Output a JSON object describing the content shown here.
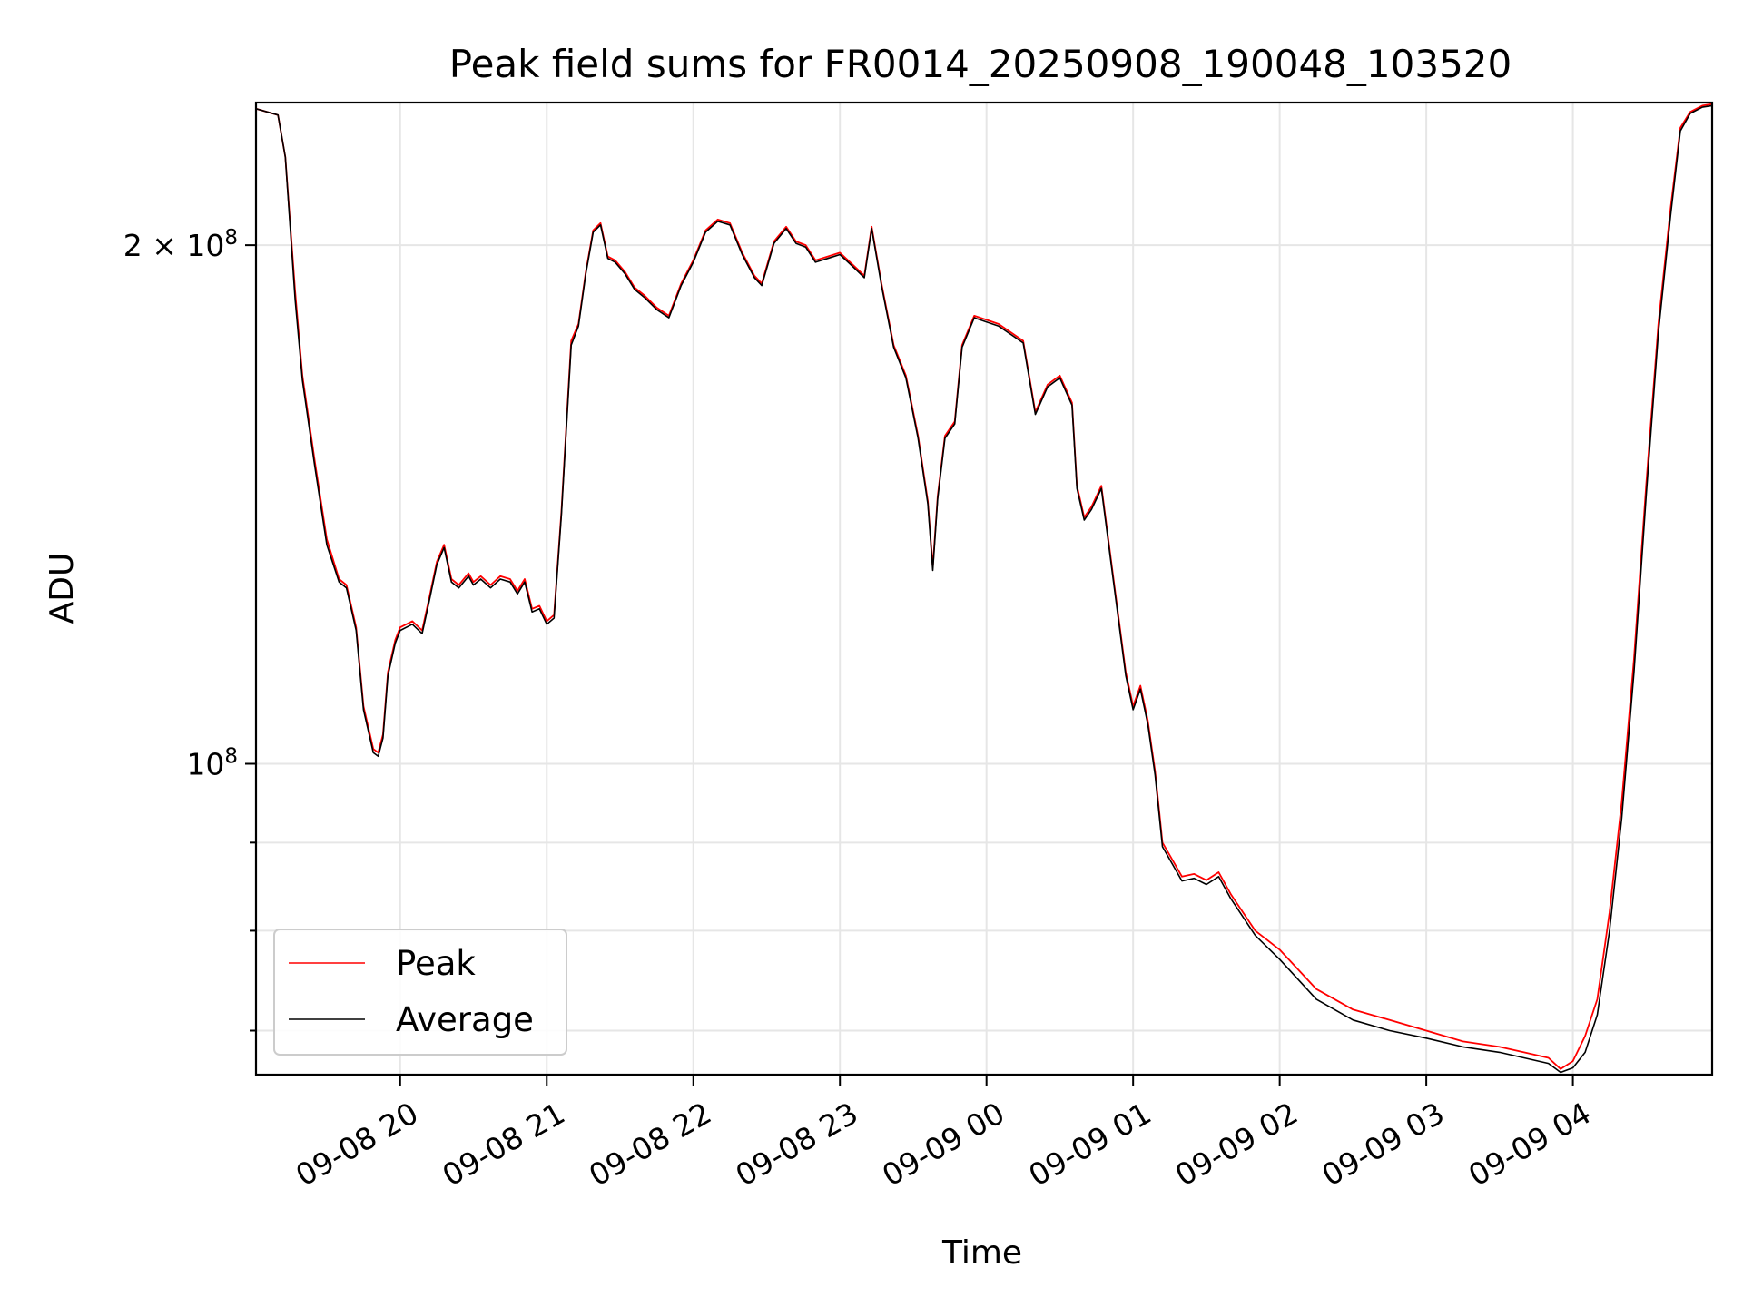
{
  "chart_data": {
    "type": "line",
    "title": "Peak field sums for FR0014_20250908_190048_103520",
    "xlabel": "Time",
    "ylabel": "ADU",
    "y_scale": "log",
    "ylim": [
      66000000,
      242000000
    ],
    "xlim": [
      "2025-09-08 19:01",
      "2025-09-09 04:57"
    ],
    "x_ticks": [
      {
        "value": "2025-09-08 20:00",
        "label": "09-08 20"
      },
      {
        "value": "2025-09-08 21:00",
        "label": "09-08 21"
      },
      {
        "value": "2025-09-08 22:00",
        "label": "09-08 22"
      },
      {
        "value": "2025-09-08 23:00",
        "label": "09-08 23"
      },
      {
        "value": "2025-09-09 00:00",
        "label": "09-09 00"
      },
      {
        "value": "2025-09-09 01:00",
        "label": "09-09 01"
      },
      {
        "value": "2025-09-09 02:00",
        "label": "09-09 02"
      },
      {
        "value": "2025-09-09 03:00",
        "label": "09-09 03"
      },
      {
        "value": "2025-09-09 04:00",
        "label": "09-09 04"
      }
    ],
    "y_major_ticks": [
      {
        "value": 100000000,
        "base": "10",
        "exp": "8",
        "label_html": ""
      },
      {
        "value": 200000000,
        "coef": "2 × ",
        "base": "10",
        "exp": "8"
      }
    ],
    "y_minor_ticks": [
      70000000,
      80000000,
      90000000
    ],
    "grid": true,
    "legend": {
      "placement": "lower-left",
      "entries": [
        "Peak",
        "Average"
      ]
    },
    "series": [
      {
        "name": "Peak",
        "color": "#ff0000",
        "x": [
          "2025-09-08 19:01",
          "2025-09-08 19:10",
          "2025-09-08 19:13",
          "2025-09-08 19:17",
          "2025-09-08 19:20",
          "2025-09-08 19:25",
          "2025-09-08 19:30",
          "2025-09-08 19:35",
          "2025-09-08 19:38",
          "2025-09-08 19:42",
          "2025-09-08 19:45",
          "2025-09-08 19:49",
          "2025-09-08 19:51",
          "2025-09-08 19:53",
          "2025-09-08 19:55",
          "2025-09-08 19:58",
          "2025-09-08 20:00",
          "2025-09-08 20:05",
          "2025-09-08 20:09",
          "2025-09-08 20:12",
          "2025-09-08 20:15",
          "2025-09-08 20:18",
          "2025-09-08 20:21",
          "2025-09-08 20:24",
          "2025-09-08 20:28",
          "2025-09-08 20:30",
          "2025-09-08 20:33",
          "2025-09-08 20:37",
          "2025-09-08 20:41",
          "2025-09-08 20:45",
          "2025-09-08 20:48",
          "2025-09-08 20:51",
          "2025-09-08 20:54",
          "2025-09-08 20:57",
          "2025-09-08 21:00",
          "2025-09-08 21:03",
          "2025-09-08 21:06",
          "2025-09-08 21:10",
          "2025-09-08 21:13",
          "2025-09-08 21:16",
          "2025-09-08 21:19",
          "2025-09-08 21:22",
          "2025-09-08 21:25",
          "2025-09-08 21:28",
          "2025-09-08 21:32",
          "2025-09-08 21:36",
          "2025-09-08 21:40",
          "2025-09-08 21:45",
          "2025-09-08 21:50",
          "2025-09-08 21:55",
          "2025-09-08 22:00",
          "2025-09-08 22:05",
          "2025-09-08 22:10",
          "2025-09-08 22:15",
          "2025-09-08 22:20",
          "2025-09-08 22:25",
          "2025-09-08 22:28",
          "2025-09-08 22:33",
          "2025-09-08 22:38",
          "2025-09-08 22:42",
          "2025-09-08 22:46",
          "2025-09-08 22:50",
          "2025-09-08 22:55",
          "2025-09-08 23:00",
          "2025-09-08 23:05",
          "2025-09-08 23:10",
          "2025-09-08 23:13",
          "2025-09-08 23:17",
          "2025-09-08 23:22",
          "2025-09-08 23:27",
          "2025-09-08 23:32",
          "2025-09-08 23:36",
          "2025-09-08 23:38",
          "2025-09-08 23:40",
          "2025-09-08 23:43",
          "2025-09-08 23:47",
          "2025-09-08 23:50",
          "2025-09-08 23:55",
          "2025-09-09 00:00",
          "2025-09-09 00:05",
          "2025-09-09 00:10",
          "2025-09-09 00:15",
          "2025-09-09 00:20",
          "2025-09-09 00:25",
          "2025-09-09 00:30",
          "2025-09-09 00:35",
          "2025-09-09 00:37",
          "2025-09-09 00:40",
          "2025-09-09 00:43",
          "2025-09-09 00:47",
          "2025-09-09 00:52",
          "2025-09-09 00:57",
          "2025-09-09 01:00",
          "2025-09-09 01:03",
          "2025-09-09 01:06",
          "2025-09-09 01:09",
          "2025-09-09 01:12",
          "2025-09-09 01:16",
          "2025-09-09 01:20",
          "2025-09-09 01:25",
          "2025-09-09 01:30",
          "2025-09-09 01:35",
          "2025-09-09 01:40",
          "2025-09-09 01:50",
          "2025-09-09 02:00",
          "2025-09-09 02:15",
          "2025-09-09 02:30",
          "2025-09-09 02:45",
          "2025-09-09 03:00",
          "2025-09-09 03:15",
          "2025-09-09 03:30",
          "2025-09-09 03:40",
          "2025-09-09 03:50",
          "2025-09-09 03:55",
          "2025-09-09 04:00",
          "2025-09-09 04:05",
          "2025-09-09 04:10",
          "2025-09-09 04:15",
          "2025-09-09 04:20",
          "2025-09-09 04:25",
          "2025-09-09 04:30",
          "2025-09-09 04:35",
          "2025-09-09 04:40",
          "2025-09-09 04:44",
          "2025-09-09 04:48",
          "2025-09-09 04:53",
          "2025-09-09 04:57"
        ],
        "y": [
          240000000,
          238000000,
          225000000,
          188000000,
          168000000,
          150000000,
          135000000,
          128000000,
          127000000,
          120000000,
          108000000,
          102000000,
          101500000,
          104000000,
          113000000,
          118000000,
          120000000,
          121000000,
          119500000,
          125000000,
          131000000,
          134000000,
          128000000,
          127000000,
          129000000,
          127500000,
          128500000,
          127000000,
          128500000,
          128000000,
          126000000,
          128000000,
          123000000,
          123500000,
          121000000,
          122000000,
          140000000,
          176000000,
          180000000,
          193000000,
          204000000,
          206000000,
          197000000,
          196000000,
          193000000,
          189000000,
          187000000,
          184000000,
          182000000,
          190000000,
          196000000,
          204000000,
          207000000,
          206000000,
          198000000,
          192000000,
          190000000,
          201000000,
          205000000,
          201000000,
          200000000,
          196000000,
          197000000,
          198000000,
          195000000,
          192000000,
          205000000,
          190000000,
          175000000,
          168000000,
          155000000,
          142000000,
          130000000,
          143000000,
          155000000,
          158000000,
          175000000,
          182000000,
          181000000,
          180000000,
          178000000,
          176000000,
          160000000,
          166000000,
          168000000,
          162000000,
          145000000,
          139000000,
          141000000,
          145000000,
          128000000,
          113000000,
          108000000,
          111000000,
          106000000,
          99000000,
          90000000,
          88000000,
          86000000,
          86300000,
          85600000,
          86500000,
          84000000,
          80000000,
          78000000,
          74000000,
          72000000,
          71000000,
          70000000,
          69000000,
          68500000,
          68000000,
          67500000,
          66500000,
          67200000,
          69500000,
          73000000,
          82000000,
          95000000,
          115000000,
          145000000,
          180000000,
          210000000,
          234000000,
          239000000,
          241000000,
          241500000
        ]
      },
      {
        "name": "Average",
        "color": "#000000",
        "x": [
          "2025-09-08 19:01",
          "2025-09-08 19:10",
          "2025-09-08 19:13",
          "2025-09-08 19:17",
          "2025-09-08 19:20",
          "2025-09-08 19:25",
          "2025-09-08 19:30",
          "2025-09-08 19:35",
          "2025-09-08 19:38",
          "2025-09-08 19:42",
          "2025-09-08 19:45",
          "2025-09-08 19:49",
          "2025-09-08 19:51",
          "2025-09-08 19:53",
          "2025-09-08 19:55",
          "2025-09-08 19:58",
          "2025-09-08 20:00",
          "2025-09-08 20:05",
          "2025-09-08 20:09",
          "2025-09-08 20:12",
          "2025-09-08 20:15",
          "2025-09-08 20:18",
          "2025-09-08 20:21",
          "2025-09-08 20:24",
          "2025-09-08 20:28",
          "2025-09-08 20:30",
          "2025-09-08 20:33",
          "2025-09-08 20:37",
          "2025-09-08 20:41",
          "2025-09-08 20:45",
          "2025-09-08 20:48",
          "2025-09-08 20:51",
          "2025-09-08 20:54",
          "2025-09-08 20:57",
          "2025-09-08 21:00",
          "2025-09-08 21:03",
          "2025-09-08 21:06",
          "2025-09-08 21:10",
          "2025-09-08 21:13",
          "2025-09-08 21:16",
          "2025-09-08 21:19",
          "2025-09-08 21:22",
          "2025-09-08 21:25",
          "2025-09-08 21:28",
          "2025-09-08 21:32",
          "2025-09-08 21:36",
          "2025-09-08 21:40",
          "2025-09-08 21:45",
          "2025-09-08 21:50",
          "2025-09-08 21:55",
          "2025-09-08 22:00",
          "2025-09-08 22:05",
          "2025-09-08 22:10",
          "2025-09-08 22:15",
          "2025-09-08 22:20",
          "2025-09-08 22:25",
          "2025-09-08 22:28",
          "2025-09-08 22:33",
          "2025-09-08 22:38",
          "2025-09-08 22:42",
          "2025-09-08 22:46",
          "2025-09-08 22:50",
          "2025-09-08 22:55",
          "2025-09-08 23:00",
          "2025-09-08 23:05",
          "2025-09-08 23:10",
          "2025-09-08 23:13",
          "2025-09-08 23:17",
          "2025-09-08 23:22",
          "2025-09-08 23:27",
          "2025-09-08 23:32",
          "2025-09-08 23:36",
          "2025-09-08 23:38",
          "2025-09-08 23:40",
          "2025-09-08 23:43",
          "2025-09-08 23:47",
          "2025-09-08 23:50",
          "2025-09-08 23:55",
          "2025-09-09 00:00",
          "2025-09-09 00:05",
          "2025-09-09 00:10",
          "2025-09-09 00:15",
          "2025-09-09 00:20",
          "2025-09-09 00:25",
          "2025-09-09 00:30",
          "2025-09-09 00:35",
          "2025-09-09 00:37",
          "2025-09-09 00:40",
          "2025-09-09 00:43",
          "2025-09-09 00:47",
          "2025-09-09 00:52",
          "2025-09-09 00:57",
          "2025-09-09 01:00",
          "2025-09-09 01:03",
          "2025-09-09 01:06",
          "2025-09-09 01:09",
          "2025-09-09 01:12",
          "2025-09-09 01:16",
          "2025-09-09 01:20",
          "2025-09-09 01:25",
          "2025-09-09 01:30",
          "2025-09-09 01:35",
          "2025-09-09 01:40",
          "2025-09-09 01:50",
          "2025-09-09 02:00",
          "2025-09-09 02:15",
          "2025-09-09 02:30",
          "2025-09-09 02:45",
          "2025-09-09 03:00",
          "2025-09-09 03:15",
          "2025-09-09 03:30",
          "2025-09-09 03:40",
          "2025-09-09 03:50",
          "2025-09-09 03:55",
          "2025-09-09 04:00",
          "2025-09-09 04:05",
          "2025-09-09 04:10",
          "2025-09-09 04:15",
          "2025-09-09 04:20",
          "2025-09-09 04:25",
          "2025-09-09 04:30",
          "2025-09-09 04:35",
          "2025-09-09 04:40",
          "2025-09-09 04:44",
          "2025-09-09 04:48",
          "2025-09-09 04:53",
          "2025-09-09 04:57"
        ],
        "y": [
          240000000,
          238000000,
          225000000,
          186000000,
          167000000,
          149000000,
          134000000,
          127500000,
          126500000,
          119500000,
          107500000,
          101500000,
          101000000,
          103500000,
          112500000,
          117500000,
          119500000,
          120500000,
          119000000,
          124500000,
          130500000,
          133500000,
          127500000,
          126500000,
          128500000,
          127000000,
          128000000,
          126500000,
          128000000,
          127500000,
          125500000,
          127500000,
          122500000,
          123000000,
          120500000,
          121500000,
          139500000,
          175000000,
          179500000,
          192500000,
          203500000,
          205500000,
          196500000,
          195500000,
          192500000,
          188500000,
          186500000,
          183500000,
          181500000,
          189500000,
          195500000,
          203500000,
          206500000,
          205500000,
          197500000,
          191500000,
          189500000,
          200500000,
          204500000,
          200500000,
          199500000,
          195500000,
          196500000,
          197500000,
          194500000,
          191500000,
          204500000,
          189500000,
          174500000,
          167500000,
          154500000,
          141500000,
          129500000,
          142500000,
          154500000,
          157500000,
          174500000,
          181500000,
          180500000,
          179500000,
          177500000,
          175500000,
          159500000,
          165500000,
          167500000,
          161500000,
          144500000,
          138500000,
          140500000,
          144500000,
          127500000,
          112500000,
          107500000,
          110500000,
          105500000,
          98500000,
          89500000,
          87500000,
          85500000,
          85800000,
          85100000,
          86000000,
          83500000,
          79500000,
          77000000,
          73000000,
          71000000,
          70000000,
          69300000,
          68500000,
          68000000,
          67500000,
          67000000,
          66200000,
          66600000,
          68000000,
          71500000,
          80000000,
          93000000,
          113000000,
          143000000,
          178000000,
          208000000,
          233000000,
          238500000,
          240500000,
          241000000
        ]
      }
    ]
  }
}
